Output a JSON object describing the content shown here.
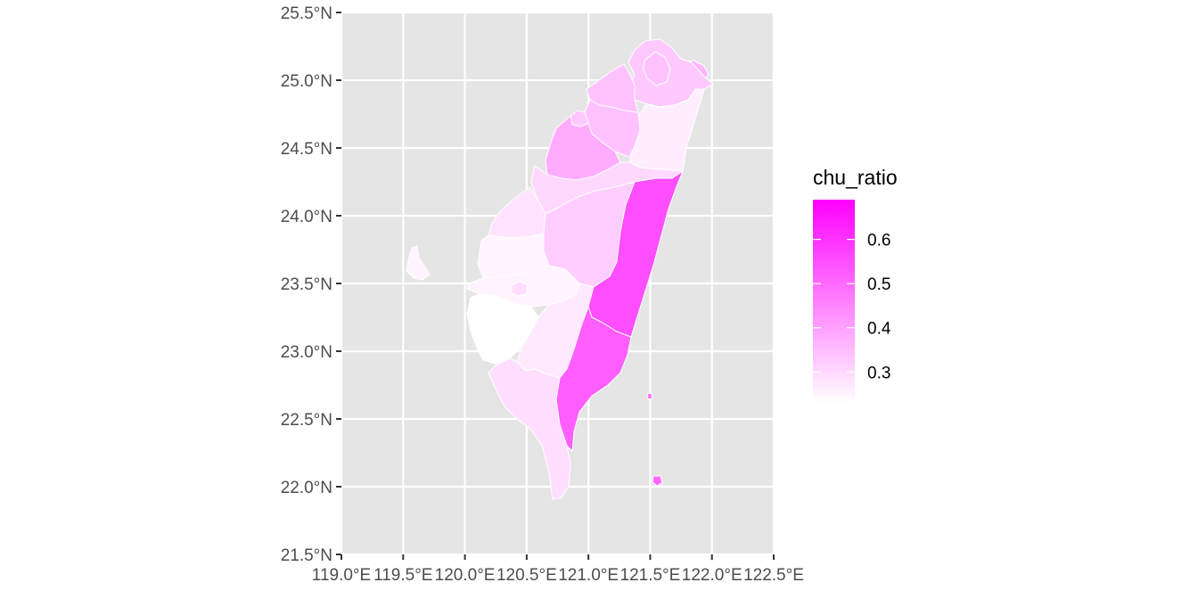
{
  "chart_data": {
    "type": "choropleth-map",
    "region": "Taiwan",
    "fill_variable": "chu_ratio",
    "x_axis": {
      "label": "",
      "range": [
        119.0,
        122.5
      ],
      "ticks": [
        119.0,
        119.5,
        120.0,
        120.5,
        121.0,
        121.5,
        122.0,
        122.5
      ],
      "tick_labels": [
        "119.0°E",
        "119.5°E",
        "120.0°E",
        "120.5°E",
        "121.0°E",
        "121.5°E",
        "122.0°E",
        "122.5°E"
      ]
    },
    "y_axis": {
      "label": "",
      "range": [
        21.5,
        25.5
      ],
      "ticks": [
        21.5,
        22.0,
        22.5,
        23.0,
        23.5,
        24.0,
        24.5,
        25.0,
        25.5
      ],
      "tick_labels": [
        "21.5°N",
        "22.0°N",
        "22.5°N",
        "23.0°N",
        "23.5°N",
        "24.0°N",
        "24.5°N",
        "25.0°N",
        "25.5°N"
      ]
    },
    "grid": true,
    "panel_background": "#e5e5e5",
    "legend": {
      "title": "chu_ratio",
      "position": "right",
      "scale_min": 0.23,
      "scale_max": 0.69,
      "low_color": "#ffffff",
      "high_color": "#ff00ff",
      "breaks": [
        0.3,
        0.4,
        0.5,
        0.6
      ],
      "break_labels": [
        "0.3",
        "0.4",
        "0.5",
        "0.6"
      ]
    },
    "regions": [
      {
        "id": "keelung",
        "value": 0.36
      },
      {
        "id": "taipei",
        "value": 0.34
      },
      {
        "id": "new-taipei",
        "value": 0.33
      },
      {
        "id": "yilan",
        "value": 0.26
      },
      {
        "id": "taoyuan",
        "value": 0.34
      },
      {
        "id": "hsinchu-city",
        "value": 0.33
      },
      {
        "id": "hsinchu",
        "value": 0.34
      },
      {
        "id": "miaoli",
        "value": 0.38
      },
      {
        "id": "taichung",
        "value": 0.3
      },
      {
        "id": "changhua",
        "value": 0.28
      },
      {
        "id": "nantou",
        "value": 0.32
      },
      {
        "id": "yunlin",
        "value": 0.25
      },
      {
        "id": "chiayi",
        "value": 0.25
      },
      {
        "id": "chiayi-city",
        "value": 0.29
      },
      {
        "id": "tainan",
        "value": 0.23
      },
      {
        "id": "kaohsiung",
        "value": 0.27
      },
      {
        "id": "pingtung",
        "value": 0.29
      },
      {
        "id": "hualien",
        "value": 0.55
      },
      {
        "id": "taitung",
        "value": 0.52
      },
      {
        "id": "penghu",
        "value": 0.25
      },
      {
        "id": "green-island",
        "value": 0.48
      },
      {
        "id": "orchid-island",
        "value": 0.5
      }
    ]
  }
}
